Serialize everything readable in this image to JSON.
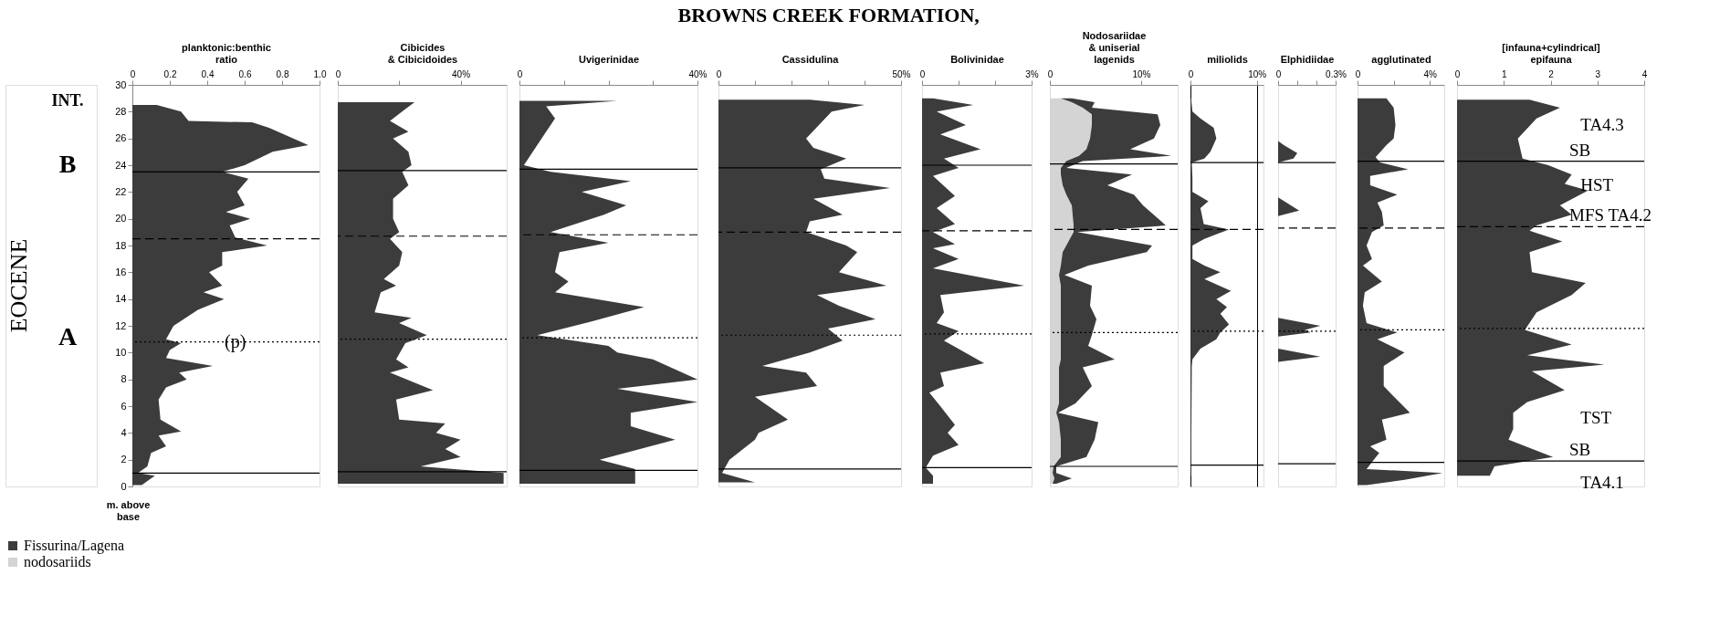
{
  "chart_data": [
    {
      "type": "other",
      "title": "BROWNS CREEK FORMATION,",
      "annotations": [
        "EOCENE",
        "INT.",
        "B",
        "A"
      ]
    },
    {
      "type": "area",
      "orientation": "horizontal",
      "xlabel": "planktonic:benthic\nratio",
      "ylabel": "m. above\nbase",
      "color": "#3c3c3c",
      "xlim": [
        0,
        1
      ],
      "xticks": [
        0,
        0.2,
        0.4,
        0.6,
        0.8,
        {
          "value": 1,
          "label": "1.0"
        }
      ],
      "ylim": [
        0,
        30
      ],
      "yticks": [
        0,
        2,
        4,
        6,
        8,
        10,
        12,
        14,
        16,
        18,
        20,
        22,
        24,
        26,
        28,
        30
      ],
      "x": [
        28.5,
        28.0,
        27.3,
        27.2,
        26.8,
        25.5,
        25.0,
        24.0,
        23.5,
        23.0,
        22.0,
        21.0,
        20.5,
        20.0,
        19.5,
        18.6,
        18.0,
        17.5,
        16.5,
        16.0,
        15.0,
        14.5,
        14.0,
        13.2,
        12.0,
        11.0,
        10.7,
        10.2,
        9.6,
        9.0,
        8.5,
        8.0,
        7.4,
        6.5,
        5.0,
        4.1,
        3.8,
        3.0,
        2.5,
        1.5,
        1.0,
        0.8,
        0.1
      ],
      "values": [
        0.13,
        0.26,
        0.3,
        0.64,
        0.73,
        0.94,
        0.75,
        0.6,
        0.48,
        0.62,
        0.56,
        0.6,
        0.5,
        0.63,
        0.52,
        0.55,
        0.72,
        0.48,
        0.48,
        0.41,
        0.48,
        0.38,
        0.49,
        0.35,
        0.22,
        0.18,
        0.26,
        0.2,
        0.18,
        0.43,
        0.25,
        0.29,
        0.18,
        0.14,
        0.15,
        0.26,
        0.14,
        0.18,
        0.1,
        0.08,
        0.03,
        0.12,
        0.05
      ],
      "ref_lines": [
        {
          "axis": "y",
          "value": 23.5,
          "line_style": "solid"
        },
        {
          "axis": "y",
          "value": 18.5,
          "line_style": "dashed"
        },
        {
          "axis": "y",
          "value": 10.8,
          "line_style": "dotted",
          "label": "(p)"
        },
        {
          "axis": "y",
          "value": 1.0,
          "line_style": "solid"
        }
      ]
    },
    {
      "type": "area",
      "orientation": "horizontal",
      "xlabel": "Cibicides\n& Cibicidoides",
      "color": "#3c3c3c",
      "tick_labels": "x",
      "xlim": [
        0,
        55
      ],
      "xticks": [
        0,
        {
          "value": 20,
          "label": null
        },
        {
          "value": 40,
          "label": "40%"
        }
      ],
      "ylim": [
        0,
        30
      ],
      "x": [
        28.7,
        28.2,
        27.3,
        26.5,
        26.0,
        25.0,
        24.0,
        23.5,
        22.5,
        21.5,
        20.0,
        19.0,
        18.5,
        17.5,
        16.5,
        15.5,
        15.0,
        14.5,
        13.0,
        12.6,
        12.2,
        11.3,
        10.7,
        9.5,
        8.9,
        8.5,
        7.2,
        6.5,
        5.0,
        4.7,
        4.0,
        3.5,
        2.8,
        2.2,
        1.5,
        1.0,
        0.2
      ],
      "values": [
        25,
        22,
        17,
        23,
        18,
        23,
        24,
        21,
        23,
        18,
        18,
        20,
        17,
        21,
        20,
        15,
        19,
        14,
        12,
        24,
        20,
        29,
        22,
        19,
        23,
        17,
        31,
        19,
        20,
        35,
        32,
        40,
        35,
        40,
        27,
        54,
        54
      ],
      "ref_lines": [
        {
          "axis": "y",
          "value": 23.6,
          "line_style": "solid"
        },
        {
          "axis": "y",
          "value": 18.7,
          "line_style": "dashed"
        },
        {
          "axis": "y",
          "value": 11.0,
          "line_style": "dotted"
        },
        {
          "axis": "y",
          "value": 1.1,
          "line_style": "solid"
        }
      ]
    },
    {
      "type": "area",
      "orientation": "horizontal",
      "xlabel": "Uvigerinidae",
      "color": "#3c3c3c",
      "tick_labels": "x",
      "xlim": [
        0,
        40
      ],
      "xticks": [
        0,
        {
          "value": 10,
          "label": null
        },
        {
          "value": 20,
          "label": null
        },
        {
          "value": 30,
          "label": null
        },
        {
          "value": 40,
          "label": "40%"
        }
      ],
      "ylim": [
        0,
        30
      ],
      "x": [
        28.8,
        28.4,
        27.5,
        26.5,
        25.0,
        24.0,
        23.5,
        22.8,
        22.0,
        21.0,
        20.3,
        19.0,
        18.2,
        17.5,
        16.0,
        15.3,
        14.5,
        13.4,
        12.3,
        11.3,
        10.5,
        10.0,
        9.5,
        8.0,
        7.3,
        6.3,
        5.5,
        4.5,
        3.5,
        2.0,
        1.3,
        0.2
      ],
      "values": [
        22,
        6,
        8,
        6,
        3,
        1,
        7,
        25,
        14,
        24,
        19,
        7,
        20,
        9,
        8,
        11,
        8,
        28,
        16,
        4,
        20,
        22,
        30,
        40,
        22,
        40,
        25,
        25,
        35,
        18,
        26,
        26
      ],
      "ref_lines": [
        {
          "axis": "y",
          "value": 23.7,
          "line_style": "solid"
        },
        {
          "axis": "y",
          "value": 18.8,
          "line_style": "dashed"
        },
        {
          "axis": "y",
          "value": 11.1,
          "line_style": "dotted"
        },
        {
          "axis": "y",
          "value": 1.2,
          "line_style": "solid"
        }
      ]
    },
    {
      "type": "area",
      "orientation": "horizontal",
      "xlabel": "Cassidulina",
      "color": "#3c3c3c",
      "tick_labels": "x",
      "xlim": [
        0,
        50
      ],
      "xticks": [
        0,
        {
          "value": 10,
          "label": null
        },
        {
          "value": 20,
          "label": null
        },
        {
          "value": 30,
          "label": null
        },
        {
          "value": 40,
          "label": null
        },
        {
          "value": 50,
          "label": "50%"
        }
      ],
      "ylim": [
        0,
        30
      ],
      "x": [
        28.9,
        28.5,
        28.0,
        26.0,
        25.3,
        24.5,
        23.7,
        23.0,
        22.3,
        21.5,
        20.3,
        19.8,
        19.0,
        18.0,
        17.5,
        16.0,
        15.0,
        14.3,
        13.5,
        12.5,
        11.8,
        10.9,
        10.0,
        9.0,
        8.5,
        7.5,
        6.7,
        5.0,
        4.0,
        3.5,
        2.0,
        1.0,
        0.3
      ],
      "values": [
        25,
        40,
        31,
        24,
        26,
        35,
        28,
        29,
        47,
        26,
        34,
        25,
        24,
        35,
        38,
        33,
        46,
        27,
        33,
        43,
        30,
        34,
        25,
        12,
        24,
        27,
        10,
        19,
        11,
        10,
        3,
        1,
        10
      ],
      "ref_lines": [
        {
          "axis": "y",
          "value": 23.8,
          "line_style": "solid"
        },
        {
          "axis": "y",
          "value": 19.0,
          "line_style": "dashed"
        },
        {
          "axis": "y",
          "value": 11.3,
          "line_style": "dotted"
        },
        {
          "axis": "y",
          "value": 1.3,
          "line_style": "solid"
        }
      ]
    },
    {
      "type": "area",
      "orientation": "horizontal",
      "xlabel": "Bolivinidae",
      "color": "#3c3c3c",
      "tick_labels": "x",
      "xlim": [
        0,
        3
      ],
      "xticks": [
        0,
        {
          "value": 1,
          "label": null
        },
        {
          "value": 2,
          "label": null
        },
        {
          "value": 3,
          "label": "3%"
        }
      ],
      "ylim": [
        0,
        30
      ],
      "x": [
        29.0,
        28.5,
        28.0,
        27.0,
        26.3,
        25.2,
        24.5,
        23.8,
        23.2,
        21.7,
        20.8,
        19.6,
        19.0,
        18.1,
        17.8,
        17.0,
        16.3,
        15.0,
        14.3,
        13.0,
        12.2,
        11.6,
        10.9,
        9.2,
        8.5,
        7.5,
        7.0,
        6.0,
        4.6,
        4.0,
        3.1,
        2.3,
        1.4,
        0.8,
        0.2
      ],
      "values": [
        0.3,
        1.4,
        0.4,
        1.2,
        0.5,
        1.6,
        0.6,
        1.0,
        0.3,
        0.9,
        0.4,
        0.9,
        0.3,
        0.9,
        0.3,
        1.0,
        0.3,
        2.8,
        0.5,
        0.6,
        0.4,
        1.0,
        0.6,
        1.7,
        0.5,
        0.6,
        0.2,
        0.5,
        0.9,
        0.7,
        1.0,
        0.3,
        0.1,
        0.3,
        0.3
      ],
      "ref_lines": [
        {
          "axis": "y",
          "value": 24.0,
          "line_style": "solid"
        },
        {
          "axis": "y",
          "value": 19.1,
          "line_style": "dashed"
        },
        {
          "axis": "y",
          "value": 11.4,
          "line_style": "dotted"
        },
        {
          "axis": "y",
          "value": 1.4,
          "line_style": "solid"
        }
      ]
    },
    {
      "type": "area",
      "orientation": "horizontal",
      "xlabel": "Nodosariidae\n& uniserial\nlagenids",
      "stacked": true,
      "legend": "bottom",
      "tick_labels": "x",
      "xlim": [
        0,
        14
      ],
      "xticks": [
        0,
        {
          "value": 10,
          "label": "10%"
        }
      ],
      "ylim": [
        0,
        30
      ],
      "x": [
        29.0,
        28.7,
        28.3,
        27.8,
        27.0,
        26.0,
        25.2,
        24.7,
        24.3,
        23.8,
        23.3,
        22.5,
        21.8,
        21.0,
        19.5,
        19.0,
        18.0,
        17.5,
        16.5,
        15.8,
        15.0,
        13.5,
        12.5,
        11.3,
        10.5,
        9.5,
        8.9,
        7.5,
        6.2,
        5.5,
        4.8,
        3.5,
        2.2,
        1.5,
        1.0,
        0.6,
        0.2
      ],
      "series": [
        {
          "name": "nodosariids",
          "color": "#d4d4d4",
          "values": [
            1.2,
            2.4,
            3.6,
            4.6,
            4.6,
            4.4,
            4.0,
            3.2,
            1.8,
            1.2,
            1.2,
            1.4,
            1.8,
            2.4,
            2.6,
            2.6,
            1.8,
            1.4,
            1.2,
            1.0,
            1.2,
            1.2,
            1.2,
            1.2,
            1.2,
            1.2,
            1.0,
            1.0,
            1.0,
            0.7,
            1.0,
            1.2,
            1.2,
            0.4,
            0.3,
            0.5,
            0.3
          ]
        },
        {
          "name": "Fissurina/Lagena",
          "color": "#3c3c3c",
          "values": [
            1.2,
            2.5,
            1.0,
            7.2,
            7.5,
            7.0,
            4.8,
            10.1,
            1.8,
            0.6,
            7.8,
            4.9,
            7.4,
            7.8,
            10.1,
            0.4,
            9.4,
            9.2,
            3.0,
            0.6,
            3.4,
            3.2,
            3.9,
            3.4,
            3.0,
            5.9,
            2.6,
            3.6,
            1.8,
            0.2,
            4.3,
            3.7,
            2.8,
            0.3,
            0.4,
            1.9,
            0.4
          ]
        }
      ],
      "ref_lines": [
        {
          "axis": "y",
          "value": 24.1,
          "line_style": "solid"
        },
        {
          "axis": "y",
          "value": 19.2,
          "line_style": "dashed"
        },
        {
          "axis": "y",
          "value": 11.5,
          "line_style": "dotted"
        },
        {
          "axis": "y",
          "value": 1.5,
          "line_style": "solid"
        }
      ]
    },
    {
      "type": "area",
      "orientation": "horizontal",
      "xlabel": "miliolids",
      "color": "#3c3c3c",
      "tick_labels": "x",
      "grid": "x",
      "xlim": [
        0,
        11
      ],
      "xticks": [
        0,
        {
          "value": 10,
          "label": "10%"
        }
      ],
      "ylim": [
        0,
        30
      ],
      "x": [
        29.0,
        28.5,
        28.0,
        27.5,
        26.8,
        26.0,
        25.0,
        24.5,
        24.2,
        23.0,
        22.0,
        21.3,
        20.8,
        19.6,
        19.2,
        18.5,
        18.0,
        17.0,
        16.5,
        16.0,
        15.5,
        14.6,
        14.0,
        13.4,
        12.9,
        12.1,
        11.5,
        11.0,
        10.3,
        9.5,
        9.0,
        0.8
      ],
      "values": [
        0.1,
        0.2,
        0.3,
        1.5,
        3.5,
        3.9,
        3.0,
        2.1,
        0.2,
        0.3,
        0.3,
        2.7,
        1.5,
        2.0,
        5.8,
        2.1,
        0.3,
        0.3,
        2.1,
        4.5,
        2.1,
        6.1,
        3.9,
        5.5,
        4.5,
        5.8,
        4.5,
        3.9,
        1.5,
        0.3,
        0.2,
        0.1
      ],
      "ref_lines": [
        {
          "axis": "y",
          "value": 24.2,
          "line_style": "solid"
        },
        {
          "axis": "y",
          "value": 19.2,
          "line_style": "dashed"
        },
        {
          "axis": "y",
          "value": 11.6,
          "line_style": "dotted"
        },
        {
          "axis": "y",
          "value": 1.6,
          "line_style": "solid"
        }
      ]
    },
    {
      "type": "area",
      "orientation": "horizontal",
      "xlabel": "Elphidiidae",
      "color": "#3c3c3c",
      "tick_labels": "x",
      "xlim": [
        0,
        0.3
      ],
      "xticks": [
        0,
        {
          "value": 0.1,
          "label": null
        },
        {
          "value": 0.2,
          "label": null
        },
        {
          "value": 0.3,
          "label": "0.3%"
        }
      ],
      "ylim": [
        0,
        30
      ],
      "x": [
        29.0,
        25.8,
        25.5,
        24.9,
        24.5,
        24.2,
        21.6,
        20.6,
        20.2,
        12.6,
        12.0,
        11.7,
        11.5,
        11.2,
        10.3,
        9.7,
        9.3,
        0.8
      ],
      "values": [
        0,
        0,
        0.03,
        0.1,
        0.08,
        0,
        0,
        0.11,
        0,
        0,
        0.22,
        0.14,
        0.17,
        0,
        0,
        0.22,
        0,
        0
      ],
      "ref_lines": [
        {
          "axis": "y",
          "value": 24.2,
          "line_style": "solid"
        },
        {
          "axis": "y",
          "value": 19.3,
          "line_style": "dashed"
        },
        {
          "axis": "y",
          "value": 11.6,
          "line_style": "dotted"
        },
        {
          "axis": "y",
          "value": 1.7,
          "line_style": "solid"
        }
      ]
    },
    {
      "type": "area",
      "orientation": "horizontal",
      "xlabel": "agglutinated",
      "color": "#3c3c3c",
      "tick_labels": "x",
      "xlim": [
        0,
        4.8
      ],
      "xticks": [
        0,
        {
          "value": 2,
          "label": null
        },
        {
          "value": 4,
          "label": "4%"
        }
      ],
      "ylim": [
        0,
        30
      ],
      "x": [
        29.0,
        28.3,
        27.0,
        26.0,
        25.5,
        24.6,
        24.2,
        23.7,
        23.2,
        22.5,
        21.8,
        21.2,
        20.5,
        19.5,
        19.0,
        18.0,
        17.0,
        16.5,
        15.3,
        14.5,
        13.5,
        12.2,
        11.5,
        11.0,
        10.0,
        9.0,
        7.5,
        7.0,
        5.5,
        5.0,
        3.5,
        3.0,
        2.5,
        1.3,
        1.0,
        0.5,
        0.1
      ],
      "values": [
        1.6,
        2.0,
        2.1,
        2.0,
        1.6,
        1.0,
        1.25,
        2.8,
        0.7,
        0.7,
        2.2,
        1.1,
        1.35,
        1.45,
        0.8,
        0.5,
        0.8,
        0.3,
        1.35,
        0.4,
        0.3,
        0.5,
        2.2,
        1.1,
        2.6,
        1.45,
        1.45,
        1.8,
        2.9,
        1.35,
        1.6,
        0.7,
        1.2,
        0.5,
        4.7,
        2.6,
        0.5
      ],
      "ref_lines": [
        {
          "axis": "y",
          "value": 24.3,
          "line_style": "solid"
        },
        {
          "axis": "y",
          "value": 19.3,
          "line_style": "dashed"
        },
        {
          "axis": "y",
          "value": 11.7,
          "line_style": "dotted"
        },
        {
          "axis": "y",
          "value": 1.8,
          "line_style": "solid"
        }
      ]
    },
    {
      "type": "area",
      "orientation": "horizontal",
      "xlabel": "[infauna+cylindrical]\nepifauna",
      "color": "#3c3c3c",
      "tick_labels": "x",
      "xlim": [
        0,
        4
      ],
      "xticks": [
        0,
        1,
        2,
        3,
        4
      ],
      "ylim": [
        0,
        30
      ],
      "x": [
        28.9,
        28.3,
        27.5,
        26.0,
        24.5,
        24.0,
        23.3,
        22.6,
        22.1,
        21.0,
        20.3,
        19.5,
        19.1,
        18.3,
        17.5,
        16.0,
        15.2,
        14.3,
        13.0,
        11.7,
        10.6,
        9.8,
        9.1,
        8.6,
        7.2,
        6.3,
        5.5,
        4.3,
        3.5,
        2.2,
        1.5,
        0.8
      ],
      "values": [
        1.55,
        2.2,
        1.7,
        1.3,
        1.4,
        1.95,
        2.45,
        2.3,
        2.8,
        2.2,
        2.45,
        1.7,
        1.55,
        2.25,
        1.55,
        1.6,
        2.75,
        2.45,
        1.7,
        1.45,
        2.45,
        1.5,
        3.15,
        1.6,
        2.3,
        1.5,
        1.2,
        1.2,
        1.1,
        2.05,
        0.8,
        0.7
      ],
      "annotations": [
        "TA4.3",
        {
          "text": "SB",
          "y": 24.3
        },
        "HST",
        {
          "text": "MFS TA4.2",
          "y": 19.4
        },
        "TST",
        {
          "text": "SB",
          "y": 1.9
        },
        "TA4.1"
      ],
      "ref_lines": [
        {
          "axis": "y",
          "value": 24.3,
          "line_style": "solid"
        },
        {
          "axis": "y",
          "value": 19.4,
          "line_style": "dashed"
        },
        {
          "axis": "y",
          "value": 11.8,
          "line_style": "dotted"
        },
        {
          "axis": "y",
          "value": 1.9,
          "line_style": "solid"
        }
      ]
    }
  ]
}
